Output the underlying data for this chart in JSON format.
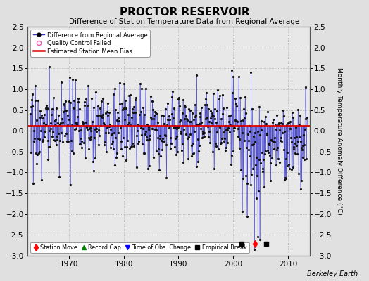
{
  "title": "PROCTOR RESERVOIR",
  "subtitle": "Difference of Station Temperature Data from Regional Average",
  "ylabel_right": "Monthly Temperature Anomaly Difference (°C)",
  "credit": "Berkeley Earth",
  "start_year": 1963.0,
  "end_year": 2013.5,
  "mean_bias": 0.12,
  "ylim": [
    -3.0,
    2.5
  ],
  "yticks_left": [
    2.5,
    2,
    1.5,
    1,
    0.5,
    0,
    -0.5,
    -1,
    -1.5,
    -2,
    -2.5,
    -3
  ],
  "yticks_right": [
    2.5,
    2,
    1.5,
    1,
    0.5,
    0,
    -0.5,
    -1,
    -1.5,
    -2,
    -2.5,
    -3
  ],
  "xticks": [
    1970,
    1980,
    1990,
    2000,
    2010
  ],
  "station_move_years": [
    2004.0
  ],
  "empirical_break_years": [
    2001.5,
    2006.0
  ],
  "time_of_obs_years": [],
  "record_gap_years": [],
  "background_color": "#e0e0e0",
  "plot_background": "#e8e8e8",
  "line_color": "#3333cc",
  "dot_color": "#111111",
  "bias_line_color": "#dd0000",
  "random_seed": 17,
  "n_years": 50,
  "shift_year": 2003.5,
  "shift_amount": -0.45
}
